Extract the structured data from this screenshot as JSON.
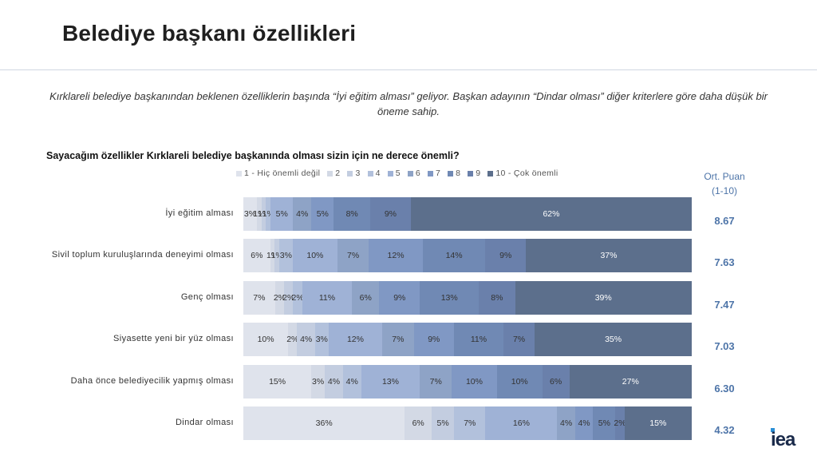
{
  "title": "Belediye başkanı özellikleri",
  "intro": "Kırklareli belediye başkanından beklenen özelliklerin başında “İyi eğitim alması” geliyor. Başkan adayının “Dindar olması” diğer kriterlere göre daha düşük bir öneme sahip.",
  "question": "Sayacağım özellikler Kırklareli belediye başkanında olması sizin için ne derece önemli?",
  "avg_header": [
    "Ort. Puan",
    "(1-10)"
  ],
  "logo": "iea",
  "colors": [
    "#dfe3ec",
    "#d3d9e5",
    "#c3cde0",
    "#b2c1dc",
    "#9fb2d6",
    "#8ea3c6",
    "#8098c4",
    "#7089b4",
    "#6a80ab",
    "#5c6f8c"
  ],
  "chart_data": {
    "type": "bar",
    "orientation": "horizontal",
    "stacked": true,
    "legend_position": "top",
    "series_names": [
      "1 - Hiç önemli değil",
      "2",
      "3",
      "4",
      "5",
      "6",
      "7",
      "8",
      "9",
      "10 - Çok önemli"
    ],
    "rows": [
      {
        "label": "İyi eğitim alması",
        "values": [
          3,
          1,
          1,
          1,
          5,
          4,
          5,
          8,
          9,
          62
        ],
        "value_labels": [
          "3%",
          "1%",
          "1%",
          "1%",
          "5%",
          "4%",
          "5%",
          "8%",
          "9%",
          "62%"
        ],
        "avg": "8.67"
      },
      {
        "label": "Sivil toplum kuruluşlarında deneyimi olması",
        "values": [
          6,
          1,
          1,
          3,
          10,
          7,
          12,
          14,
          9,
          37
        ],
        "value_labels": [
          "6%",
          "1%",
          "1%",
          "3%",
          "10%",
          "7%",
          "12%",
          "14%",
          "9%",
          "37%"
        ],
        "avg": "7.63"
      },
      {
        "label": "Genç olması",
        "values": [
          7,
          2,
          2,
          2,
          11,
          6,
          9,
          13,
          8,
          39
        ],
        "value_labels": [
          "7%",
          "2%",
          "2%",
          "2%",
          "11%",
          "6%",
          "9%",
          "13%",
          "8%",
          "39%"
        ],
        "avg": "7.47"
      },
      {
        "label": "Siyasette yeni bir yüz olması",
        "values": [
          10,
          2,
          4,
          3,
          12,
          7,
          9,
          11,
          7,
          35
        ],
        "value_labels": [
          "10%",
          "2%",
          "4%",
          "3%",
          "12%",
          "7%",
          "9%",
          "11%",
          "7%",
          "35%"
        ],
        "avg": "7.03"
      },
      {
        "label": "Daha önce belediyecilik yapmış olması",
        "values": [
          15,
          3,
          4,
          4,
          13,
          7,
          10,
          10,
          6,
          27
        ],
        "value_labels": [
          "15%",
          "3%",
          "4%",
          "4%",
          "13%",
          "7%",
          "10%",
          "10%",
          "6%",
          "27%"
        ],
        "avg": "6.30"
      },
      {
        "label": "Dindar olması",
        "values": [
          36,
          6,
          5,
          7,
          16,
          4,
          4,
          5,
          2,
          15
        ],
        "value_labels": [
          "36%",
          "6%",
          "5%",
          "7%",
          "16%",
          "4%",
          "4%",
          "5%",
          "2%",
          "15%"
        ],
        "avg": "4.32"
      }
    ]
  }
}
